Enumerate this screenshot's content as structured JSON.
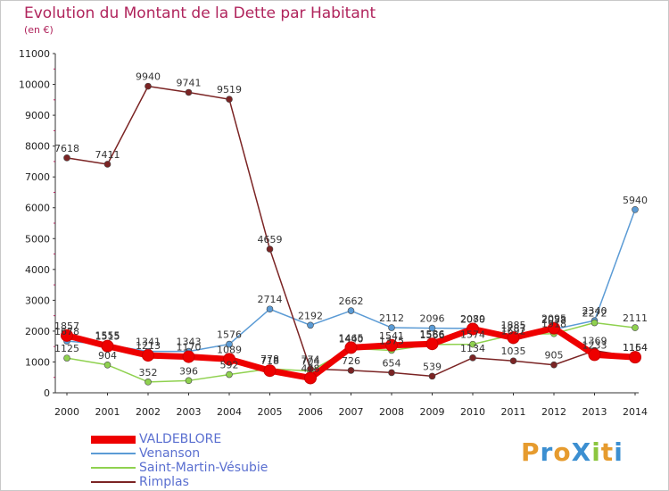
{
  "title": "Evolution du Montant de la Dette par Habitant",
  "subtitle": "(en €)",
  "logo": {
    "text": "ProXiti",
    "letters": [
      "P",
      "r",
      "o",
      "X",
      "i",
      "t",
      "i"
    ],
    "colors": [
      "#e69b2e",
      "#3c8fd1",
      "#e69b2e",
      "#3c8fd1",
      "#8cc63f",
      "#e69b2e",
      "#3c8fd1"
    ]
  },
  "chart_data": {
    "type": "line",
    "x": [
      "2000",
      "2001",
      "2002",
      "2003",
      "2004",
      "2005",
      "2006",
      "2007",
      "2008",
      "2009",
      "2010",
      "2011",
      "2012",
      "2013",
      "2014"
    ],
    "ylim": [
      0,
      11000
    ],
    "yticks": [
      "0",
      "1000",
      "2000",
      "3000",
      "4000",
      "5000",
      "6000",
      "7000",
      "8000",
      "9000",
      "10000",
      "11000"
    ],
    "grid": false,
    "legend_position": "bottom-left",
    "series": [
      {
        "name": "VALDEBLORE",
        "color": "#ee0000",
        "values": [
          1857,
          1515,
          1213,
          1170,
          1089,
          718,
          478,
          1465,
          1541,
          1586,
          2070,
          1787,
          2095,
          1233,
          1154
        ]
      },
      {
        "name": "Venanson",
        "color": "#5b9bd5",
        "values": [
          1678,
          1555,
          1341,
          1343,
          1576,
          2714,
          2192,
          2662,
          2112,
          2096,
          2089,
          1692,
          2058,
          2340,
          5940
        ]
      },
      {
        "name": "Saint-Martin-Vésubie",
        "color": "#8fd14f",
        "values": [
          1125,
          904,
          352,
          396,
          592,
          778,
          704,
          1440,
          1375,
          1566,
          1574,
          1885,
          1918,
          2272,
          2111
        ]
      },
      {
        "name": "Rimplas",
        "color": "#7b2424",
        "values": [
          7618,
          7411,
          9940,
          9741,
          9519,
          4659,
          774,
          726,
          654,
          539,
          1134,
          1035,
          905,
          1369,
          1164
        ]
      }
    ]
  }
}
